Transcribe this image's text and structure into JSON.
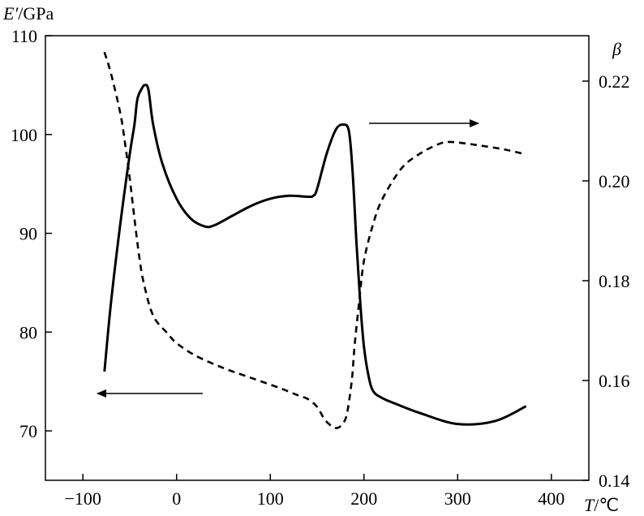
{
  "chart_data": {
    "type": "line",
    "title": "",
    "x_axis": {
      "label_var": "T",
      "label_unit": "/℃",
      "range": [
        -140,
        440
      ],
      "ticks": [
        -100,
        0,
        100,
        200,
        300,
        400
      ],
      "tick_labels": [
        "−100",
        "0",
        "100",
        "200",
        "300",
        "400"
      ]
    },
    "y_left": {
      "label_var": "E′",
      "label_unit": "/GPa",
      "range": [
        65,
        110
      ],
      "ticks": [
        70,
        80,
        90,
        100,
        110
      ],
      "tick_labels": [
        "70",
        "80",
        "90",
        "100",
        "110"
      ]
    },
    "y_right": {
      "label_var": "β",
      "range": [
        0.14,
        0.2291
      ],
      "ticks": [
        0.14,
        0.16,
        0.18,
        0.2,
        0.22
      ],
      "tick_labels": [
        "0.14",
        "0.16",
        "0.18",
        "0.20",
        "0.22"
      ]
    },
    "grid": false,
    "series": [
      {
        "axis": "left",
        "style": "solid",
        "color": "#000000",
        "x": [
          -77,
          -70,
          -60,
          -50,
          -45,
          -42,
          -38,
          -34,
          -30,
          -25,
          -15,
          0,
          15,
          30,
          40,
          60,
          80,
          100,
          120,
          140,
          146,
          150,
          160,
          170,
          178,
          184,
          188,
          192,
          196,
          200,
          205,
          210,
          220,
          235,
          260,
          300,
          340,
          373
        ],
        "y": [
          76,
          83,
          91,
          98,
          101,
          103.5,
          104.5,
          105,
          104.5,
          101,
          97,
          93.5,
          91.5,
          90.7,
          90.8,
          91.8,
          92.8,
          93.5,
          93.8,
          93.7,
          93.8,
          94.5,
          98,
          100.5,
          101,
          100.3,
          96,
          89,
          83,
          78.5,
          75.5,
          74,
          73.3,
          72.7,
          71.8,
          70.7,
          71,
          72.5
        ]
      },
      {
        "axis": "right",
        "style": "dashed",
        "color": "#000000",
        "x": [
          -77,
          -70,
          -60,
          -55,
          -50,
          -45,
          -40,
          -35,
          -25,
          -10,
          0,
          20,
          50,
          80,
          110,
          130,
          140,
          150,
          158,
          166,
          172,
          178,
          182,
          187,
          190,
          195,
          200,
          210,
          220,
          240,
          260,
          280,
          290,
          300,
          320,
          350,
          373
        ],
        "y": [
          0.2258,
          0.2215,
          0.2135,
          0.2075,
          0.2005,
          0.1925,
          0.185,
          0.1795,
          0.173,
          0.1695,
          0.1675,
          0.165,
          0.1625,
          0.1605,
          0.1585,
          0.157,
          0.1563,
          0.1547,
          0.1522,
          0.1508,
          0.1505,
          0.1515,
          0.1535,
          0.16,
          0.167,
          0.176,
          0.184,
          0.1915,
          0.1965,
          0.2025,
          0.2055,
          0.2074,
          0.2078,
          0.2077,
          0.2072,
          0.2063,
          0.2053
        ]
      }
    ],
    "annotations": [
      {
        "type": "arrow",
        "direction": "right",
        "refers_to": "right-axis series"
      },
      {
        "type": "arrow",
        "direction": "left",
        "refers_to": "left-axis series"
      }
    ]
  }
}
